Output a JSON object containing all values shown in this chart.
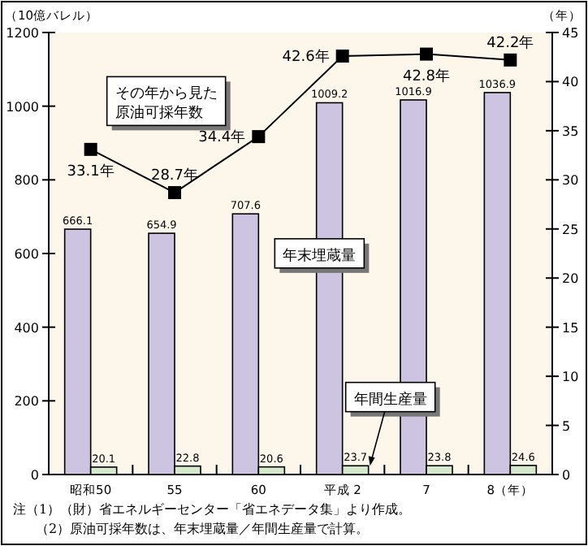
{
  "chart_data": {
    "type": "bar",
    "ylabel": "（10億バレル）",
    "y2label": "（年）",
    "categories": [
      "昭和50",
      "55",
      "60",
      "平成 2",
      "7",
      "8（年）"
    ],
    "series": [
      {
        "name": "年末埋蔵量",
        "color": "#ccc4e0",
        "values": [
          666.1,
          654.9,
          707.6,
          1009.2,
          1016.9,
          1036.9
        ],
        "value_labels": [
          "666.1",
          "654.9",
          "707.6",
          "1009.2",
          "1016.9",
          "1036.9"
        ]
      },
      {
        "name": "年間生産量",
        "color": "#d4e8cc",
        "values": [
          20.1,
          22.8,
          20.6,
          23.7,
          23.8,
          24.6
        ],
        "value_labels": [
          "20.1",
          "22.8",
          "20.6",
          "23.7",
          "23.8",
          "24.6"
        ]
      },
      {
        "name": "その年から見た原油可採年数",
        "type": "line",
        "axis": "y2",
        "color": "#000000",
        "values": [
          33.1,
          28.7,
          34.4,
          42.6,
          42.8,
          42.2
        ],
        "value_labels": [
          "33.1年",
          "28.7年",
          "34.4年",
          "42.6年",
          "42.8年",
          "42.2年"
        ]
      }
    ],
    "ylim": [
      0,
      1200
    ],
    "yticks": [
      0,
      200,
      400,
      600,
      800,
      1000,
      1200
    ],
    "y2lim": [
      0,
      45
    ],
    "y2ticks": [
      0,
      5,
      10,
      15,
      20,
      25,
      30,
      35,
      40,
      45
    ],
    "marker": "square",
    "line_style": "solid",
    "grid": false,
    "legend": false,
    "annotations": [
      "注（1）（財）省エネルギーセンター「省エネデータ集」より作成。",
      "（2）原油可採年数は、年末埋蔵量／年間生産量で計算。"
    ]
  }
}
